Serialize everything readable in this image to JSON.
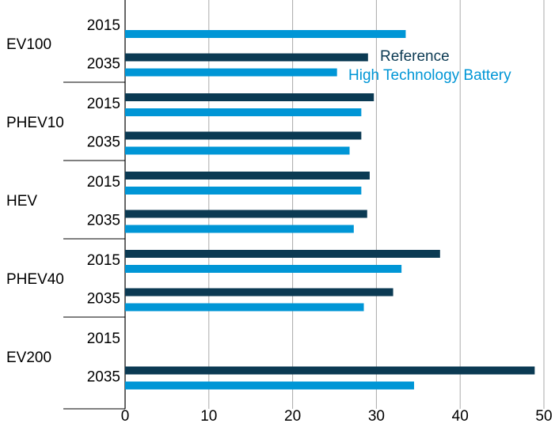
{
  "chart_data": {
    "type": "bar",
    "orientation": "horizontal",
    "groups": [
      "EV100",
      "PHEV10",
      "HEV",
      "PHEV40",
      "EV200"
    ],
    "categories": [
      "2015",
      "2035",
      "2015",
      "2035",
      "2015",
      "2035",
      "2015",
      "2035",
      "2015",
      "2035"
    ],
    "series": [
      {
        "name": "Reference",
        "color": "#0b3a53",
        "values": [
          null,
          29.0,
          29.7,
          28.2,
          29.2,
          28.9,
          37.6,
          32.0,
          null,
          48.9
        ]
      },
      {
        "name": "High Technology Battery",
        "color": "#0096d6",
        "values": [
          33.5,
          25.3,
          28.2,
          26.8,
          28.2,
          27.3,
          33.0,
          28.5,
          null,
          34.5
        ]
      }
    ],
    "xlim": [
      0,
      50
    ],
    "xticks": [
      0,
      10,
      20,
      30,
      40,
      50
    ],
    "grid": true,
    "legend": "right"
  }
}
